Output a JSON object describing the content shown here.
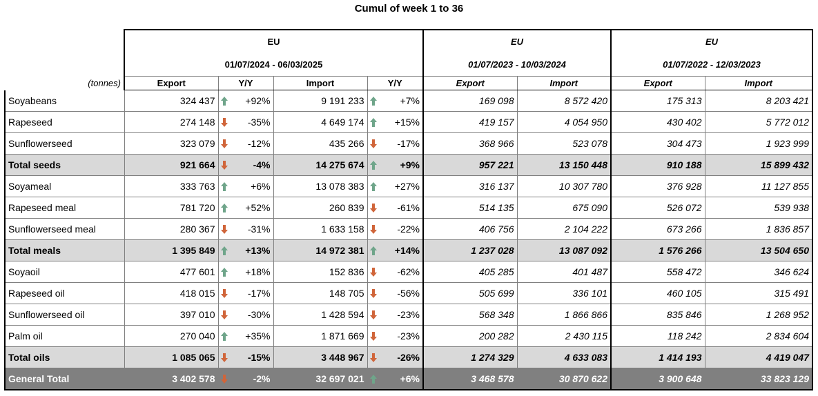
{
  "title": "Cumul of week 1 to 36",
  "unit_label": "(tonnes)",
  "groups": [
    {
      "name": "EU",
      "period": "01/07/2024 - 06/03/2025"
    },
    {
      "name": "EU",
      "period": "01/07/2023 - 10/03/2024"
    },
    {
      "name": "EU",
      "period": "01/07/2022 - 12/03/2023"
    }
  ],
  "columns": {
    "export": "Export",
    "yy": "Y/Y",
    "import": "Import"
  },
  "colors": {
    "up": "#6fa58a",
    "down": "#d0653a",
    "total_bg": "#d9d9d9",
    "grand_bg": "#808080"
  },
  "rows": [
    {
      "label": "Soyabeans",
      "type": "item",
      "exp": "324 437",
      "exp_dir": "up",
      "exp_yy": "+92%",
      "imp": "9 191 233",
      "imp_dir": "up",
      "imp_yy": "+7%",
      "exp23": "169 098",
      "imp23": "8 572 420",
      "exp22": "175 313",
      "imp22": "8 203 421"
    },
    {
      "label": "Rapeseed",
      "type": "item",
      "exp": "274 148",
      "exp_dir": "down",
      "exp_yy": "-35%",
      "imp": "4 649 174",
      "imp_dir": "up",
      "imp_yy": "+15%",
      "exp23": "419 157",
      "imp23": "4 054 950",
      "exp22": "430 402",
      "imp22": "5 772 012"
    },
    {
      "label": "Sunflowerseed",
      "type": "item",
      "exp": "323 079",
      "exp_dir": "down",
      "exp_yy": "-12%",
      "imp": "435 266",
      "imp_dir": "down",
      "imp_yy": "-17%",
      "exp23": "368 966",
      "imp23": "523 078",
      "exp22": "304 473",
      "imp22": "1 923 999"
    },
    {
      "label": "Total seeds",
      "type": "total",
      "exp": "921 664",
      "exp_dir": "down",
      "exp_yy": "-4%",
      "imp": "14 275 674",
      "imp_dir": "up",
      "imp_yy": "+9%",
      "exp23": "957 221",
      "imp23": "13 150 448",
      "exp22": "910 188",
      "imp22": "15 899 432"
    },
    {
      "label": "Soyameal",
      "type": "item",
      "exp": "333 763",
      "exp_dir": "up",
      "exp_yy": "+6%",
      "imp": "13 078 383",
      "imp_dir": "up",
      "imp_yy": "+27%",
      "exp23": "316 137",
      "imp23": "10 307 780",
      "exp22": "376 928",
      "imp22": "11 127 855"
    },
    {
      "label": "Rapeseed meal",
      "type": "item",
      "exp": "781 720",
      "exp_dir": "up",
      "exp_yy": "+52%",
      "imp": "260 839",
      "imp_dir": "down",
      "imp_yy": "-61%",
      "exp23": "514 135",
      "imp23": "675 090",
      "exp22": "526 072",
      "imp22": "539 938"
    },
    {
      "label": "Sunflowerseed meal",
      "type": "item",
      "exp": "280 367",
      "exp_dir": "down",
      "exp_yy": "-31%",
      "imp": "1 633 158",
      "imp_dir": "down",
      "imp_yy": "-22%",
      "exp23": "406 756",
      "imp23": "2 104 222",
      "exp22": "673 266",
      "imp22": "1 836 857"
    },
    {
      "label": "Total meals",
      "type": "total",
      "exp": "1 395 849",
      "exp_dir": "up",
      "exp_yy": "+13%",
      "imp": "14 972 381",
      "imp_dir": "up",
      "imp_yy": "+14%",
      "exp23": "1 237 028",
      "imp23": "13 087 092",
      "exp22": "1 576 266",
      "imp22": "13 504 650"
    },
    {
      "label": "Soyaoil",
      "type": "item",
      "exp": "477 601",
      "exp_dir": "up",
      "exp_yy": "+18%",
      "imp": "152 836",
      "imp_dir": "down",
      "imp_yy": "-62%",
      "exp23": "405 285",
      "imp23": "401 487",
      "exp22": "558 472",
      "imp22": "346 624"
    },
    {
      "label": "Rapeseed oil",
      "type": "item",
      "exp": "418 015",
      "exp_dir": "down",
      "exp_yy": "-17%",
      "imp": "148 705",
      "imp_dir": "down",
      "imp_yy": "-56%",
      "exp23": "505 699",
      "imp23": "336 101",
      "exp22": "460 105",
      "imp22": "315 491"
    },
    {
      "label": "Sunflowerseed oil",
      "type": "item",
      "exp": "397 010",
      "exp_dir": "down",
      "exp_yy": "-30%",
      "imp": "1 428 594",
      "imp_dir": "down",
      "imp_yy": "-23%",
      "exp23": "568 348",
      "imp23": "1 866 866",
      "exp22": "835 846",
      "imp22": "1 268 952"
    },
    {
      "label": "Palm oil",
      "type": "item",
      "exp": "270 040",
      "exp_dir": "up",
      "exp_yy": "+35%",
      "imp": "1 871 669",
      "imp_dir": "down",
      "imp_yy": "-23%",
      "exp23": "200 282",
      "imp23": "2 430 115",
      "exp22": "118 242",
      "imp22": "2 834 604"
    },
    {
      "label": "Total oils",
      "type": "total",
      "exp": "1 085 065",
      "exp_dir": "down",
      "exp_yy": "-15%",
      "imp": "3 448 967",
      "imp_dir": "down",
      "imp_yy": "-26%",
      "exp23": "1 274 329",
      "imp23": "4 633 083",
      "exp22": "1 414 193",
      "imp22": "4 419 047"
    },
    {
      "label": "General Total",
      "type": "grand",
      "exp": "3 402 578",
      "exp_dir": "down",
      "exp_yy": "-2%",
      "imp": "32 697 021",
      "imp_dir": "up",
      "imp_yy": "+6%",
      "exp23": "3 468 578",
      "imp23": "30 870 622",
      "exp22": "3 900 648",
      "imp22": "33 823 129"
    }
  ]
}
